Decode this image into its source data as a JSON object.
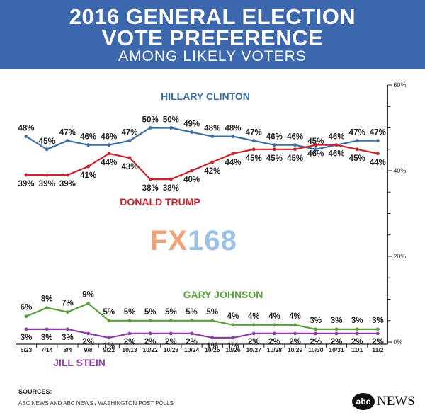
{
  "header": {
    "title_line1": "2016 GENERAL ELECTION",
    "title_line2": "VOTE PREFERENCE",
    "subtitle": "AMONG LIKELY VOTERS"
  },
  "watermark": {
    "part1": "FX",
    "part2": "168"
  },
  "footer": {
    "sources_label": "SOURCES:",
    "sources_text": "ABC NEWS AND ABC NEWS / WASHINGTON POST POLLS",
    "logo_mark": "abc",
    "logo_word": "NEWS"
  },
  "chart_data": {
    "type": "line",
    "title": "2016 GENERAL ELECTION VOTE PREFERENCE",
    "subtitle": "AMONG LIKELY VOTERS",
    "categories": [
      "6/23",
      "7/14",
      "8/4",
      "9/8",
      "9/22",
      "10/13",
      "10/22",
      "10/23",
      "10/24",
      "10/25",
      "10/26",
      "10/27",
      "10/28",
      "10/29",
      "10/30",
      "10/31",
      "11/1",
      "11/2"
    ],
    "ylim": [
      0,
      60
    ],
    "yticks": [
      "60%",
      "40%",
      "20%",
      "0%"
    ],
    "grid": false,
    "series": [
      {
        "name": "HILLARY CLINTON",
        "color": "#3a6ea5",
        "values": [
          48,
          45,
          47,
          46,
          46,
          47,
          50,
          50,
          49,
          48,
          48,
          47,
          46,
          46,
          45,
          46,
          47,
          47
        ],
        "labels": [
          "48%",
          "45%",
          "47%",
          "46%",
          "46%",
          "47%",
          "50%",
          "50%",
          "49%",
          "48%",
          "48%",
          "47%",
          "46%",
          "46%",
          "45%",
          "46%",
          "47%",
          "47%"
        ]
      },
      {
        "name": "DONALD TRUMP",
        "color": "#c7262e",
        "values": [
          39,
          39,
          39,
          41,
          44,
          43,
          38,
          38,
          40,
          42,
          44,
          45,
          45,
          45,
          46,
          46,
          45,
          44
        ],
        "labels": [
          "39%",
          "39%",
          "39%",
          "41%",
          "44%",
          "43%",
          "38%",
          "38%",
          "40%",
          "42%",
          "44%",
          "45%",
          "45%",
          "45%",
          "46%",
          "46%",
          "45%",
          "44%"
        ]
      },
      {
        "name": "GARY JOHNSON",
        "color": "#5aa13d",
        "values": [
          6,
          8,
          7,
          9,
          5,
          5,
          5,
          5,
          5,
          5,
          4,
          4,
          4,
          4,
          3,
          3,
          3,
          3
        ],
        "labels": [
          "6%",
          "8%",
          "7%",
          "9%",
          "5%",
          "5%",
          "5%",
          "5%",
          "5%",
          "5%",
          "4%",
          "4%",
          "4%",
          "4%",
          "3%",
          "3%",
          "3%",
          "3%"
        ]
      },
      {
        "name": "JILL STEIN",
        "color": "#8e3fa3",
        "values": [
          3,
          3,
          3,
          2,
          1,
          2,
          2,
          2,
          2,
          1,
          1,
          2,
          2,
          2,
          2,
          2,
          2,
          2
        ],
        "labels": [
          "3%",
          "3%",
          "3%",
          "2%",
          "1%",
          "2%",
          "2%",
          "2%",
          "2%",
          "1%",
          "1%",
          "2%",
          "2%",
          "2%",
          "2%",
          "2%",
          "2%",
          "2%"
        ]
      }
    ]
  }
}
